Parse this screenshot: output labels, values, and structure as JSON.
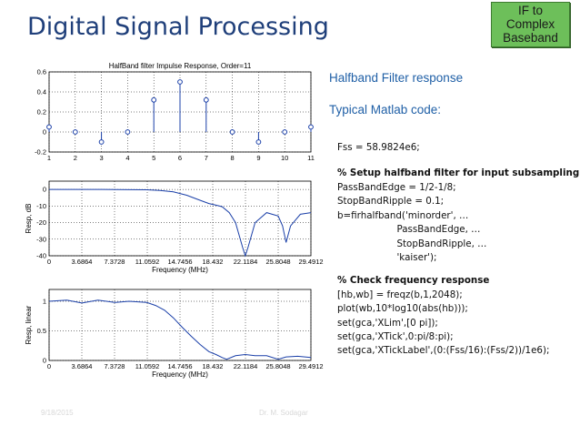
{
  "slide": {
    "title": "Digital Signal Processing",
    "badge_lines": [
      "IF to",
      "Complex",
      "Baseband"
    ],
    "heading": "Halfband Filter response",
    "subheading": "Typical Matlab code:",
    "code_lines": [
      {
        "text": "Fss = 58.9824e6;",
        "bold": false
      },
      {
        "text": "% Setup halfband filter for input subsampling",
        "bold": true
      },
      {
        "text": "PassBandEdge = 1/2-1/8;",
        "bold": false
      },
      {
        "text": "StopBandRipple = 0.1;",
        "bold": false
      },
      {
        "text": "b=firhalfband('minorder', …",
        "bold": false
      },
      {
        "text": "                    PassBandEdge, …",
        "bold": false
      },
      {
        "text": "                    StopBandRipple, …",
        "bold": false
      },
      {
        "text": "                    'kaiser');",
        "bold": false
      },
      {
        "text": "% Check frequency response",
        "bold": true
      },
      {
        "text": "[hb,wb] = freqz(b,1,2048);",
        "bold": false
      },
      {
        "text": "plot(wb,10*log10(abs(hb)));",
        "bold": false
      },
      {
        "text": "set(gca,'XLim',[0 pi]);",
        "bold": false
      },
      {
        "text": "set(gca,'XTick',0:pi/8:pi);",
        "bold": false
      },
      {
        "text": "set(gca,'XTickLabel',(0:(Fss/16):(Fss/2))/1e6);",
        "bold": false
      }
    ],
    "colors": {
      "title": "#1f3f7a",
      "accent": "#1f5fa6",
      "badge": "#6dbf5a"
    }
  },
  "chart_data": [
    {
      "type": "stem",
      "title": "HalfBand filter Impulse Response, Order=11",
      "xlabel": "",
      "ylabel": "",
      "x": [
        1,
        2,
        3,
        4,
        5,
        6,
        7,
        8,
        9,
        10,
        11
      ],
      "values": [
        0.05,
        0.0,
        -0.1,
        0.0,
        0.32,
        0.5,
        0.32,
        0.0,
        -0.1,
        0.0,
        0.05
      ],
      "xlim": [
        1,
        11
      ],
      "ylim": [
        -0.2,
        0.6
      ],
      "xticks": [
        "1",
        "2",
        "3",
        "4",
        "5",
        "6",
        "7",
        "8",
        "9",
        "10",
        "11"
      ],
      "yticks": [
        "-0.2",
        "0",
        "0.2",
        "0.4",
        "0.6"
      ],
      "grid": true
    },
    {
      "type": "line",
      "title": "",
      "xlabel": "Frequency (MHz)",
      "ylabel": "Resp, dB",
      "xticks": [
        "0",
        "3.6864",
        "7.3728",
        "11.0592",
        "14.7456",
        "18.432",
        "22.1184",
        "25.8048",
        "29.4912"
      ],
      "yticks": [
        "-40",
        "-30",
        "-20",
        "-10",
        "0"
      ],
      "xlim": [
        0,
        29.4912
      ],
      "ylim": [
        -40,
        5
      ],
      "grid": true,
      "series": [
        {
          "x": [
            0,
            6,
            11,
            12.5,
            14,
            15.5,
            17,
            18,
            18.8,
            19.5,
            20.3,
            21,
            21.8,
            22.1,
            22.4,
            23.2,
            24.5,
            25.8,
            26.3,
            26.7,
            27.2,
            28.3,
            29.4912
          ],
          "values": [
            0,
            0,
            -0.2,
            -0.6,
            -1.5,
            -3.5,
            -6.5,
            -8.5,
            -9.5,
            -10.4,
            -14,
            -20,
            -35,
            -41,
            -35,
            -20,
            -14,
            -16,
            -22,
            -32,
            -22,
            -15,
            -14
          ]
        }
      ]
    },
    {
      "type": "line",
      "title": "",
      "xlabel": "Frequency (MHz)",
      "ylabel": "Resp, linear",
      "xticks": [
        "0",
        "3.6864",
        "7.3728",
        "11.0592",
        "14.7456",
        "18.432",
        "22.1184",
        "25.8048",
        "29.4912"
      ],
      "yticks": [
        "0",
        "0.5",
        "1"
      ],
      "xlim": [
        0,
        29.4912
      ],
      "ylim": [
        0,
        1.2
      ],
      "grid": true,
      "series": [
        {
          "x": [
            0,
            2,
            3.7,
            5.5,
            7.4,
            9,
            11,
            12,
            13,
            14,
            15,
            16,
            17,
            18,
            18.8,
            19.5,
            20,
            21,
            22.1,
            23.2,
            24.5,
            25.8,
            26.7,
            28,
            29.4912
          ],
          "values": [
            1,
            1.02,
            0.97,
            1.02,
            0.98,
            1.0,
            0.98,
            0.93,
            0.85,
            0.72,
            0.56,
            0.41,
            0.27,
            0.15,
            0.1,
            0.05,
            0.02,
            0.08,
            0.1,
            0.08,
            0.08,
            0.02,
            0.06,
            0.07,
            0.05
          ]
        }
      ]
    }
  ],
  "footer": {
    "left": "9/18/2015",
    "center": "Dr. M. Sodagar"
  }
}
